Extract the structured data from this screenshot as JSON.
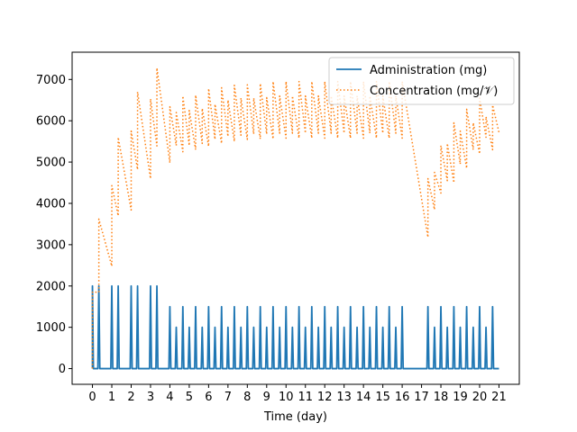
{
  "chart_data": {
    "type": "line",
    "title": "",
    "xlabel": "Time (day)",
    "ylabel": "",
    "xlim": [
      -1.05,
      22.05
    ],
    "ylim": [
      -380,
      7660
    ],
    "xticks": [
      "0",
      "1",
      "2",
      "3",
      "4",
      "5",
      "6",
      "7",
      "8",
      "9",
      "10",
      "11",
      "12",
      "13",
      "14",
      "15",
      "16",
      "17",
      "18",
      "19",
      "20",
      "21"
    ],
    "yticks": [
      "0",
      "1000",
      "2000",
      "3000",
      "4000",
      "5000",
      "6000",
      "7000"
    ],
    "grid": false,
    "legend_position": "top-right",
    "series": [
      {
        "name": "Administration (mg)",
        "color": "#1f77b4",
        "style": "solid",
        "dose_days": [
          0,
          0.33,
          1,
          1.33,
          2,
          2.33,
          3,
          3.33,
          4,
          4.33,
          4.67,
          5,
          5.33,
          5.67,
          6,
          6.33,
          6.67,
          7,
          7.33,
          7.67,
          8,
          8.33,
          8.67,
          9,
          9.33,
          9.67,
          10,
          10.33,
          10.67,
          11,
          11.33,
          11.67,
          12,
          12.33,
          12.67,
          13,
          13.33,
          13.67,
          14,
          14.33,
          14.67,
          15,
          15.33,
          15.67,
          16,
          17.33,
          17.67,
          18,
          18.33,
          18.67,
          19,
          19.33,
          19.67,
          20,
          20.33,
          20.67
        ],
        "dose_mg": [
          2000,
          2000,
          2000,
          2000,
          2000,
          2000,
          2000,
          2000,
          1500,
          1000,
          1500,
          1000,
          1500,
          1000,
          1500,
          1000,
          1500,
          1000,
          1500,
          1000,
          1500,
          1000,
          1500,
          1000,
          1500,
          1000,
          1500,
          1000,
          1500,
          1000,
          1500,
          1000,
          1500,
          1000,
          1500,
          1000,
          1500,
          1000,
          1500,
          1000,
          1500,
          1000,
          1500,
          1000,
          1500,
          1500,
          1000,
          1500,
          1000,
          1500,
          1000,
          1500,
          1000,
          1500,
          1000,
          1500
        ],
        "x_end": 21
      },
      {
        "name": "Concentration (mg/𝒱)",
        "color": "#ff7f0e",
        "style": "dotted",
        "x": [
          0,
          0.33,
          1,
          1.33,
          2,
          2.33,
          3,
          3.33,
          4,
          4.33,
          4.67,
          5,
          5.33,
          5.67,
          6,
          6.33,
          6.67,
          7,
          7.33,
          7.67,
          8,
          8.33,
          8.67,
          9,
          9.33,
          9.67,
          10,
          10.33,
          10.67,
          11,
          11.33,
          11.67,
          12,
          12.33,
          12.67,
          13,
          13.33,
          13.67,
          14,
          14.33,
          14.67,
          15,
          15.33,
          15.67,
          16,
          17.33,
          17.67,
          18,
          18.33,
          18.67,
          19,
          19.33,
          19.67,
          20,
          20.33,
          20.67
        ],
        "peak": [
          1850,
          3620,
          4430,
          5600,
          5750,
          6700,
          6530,
          7280,
          6340,
          6200,
          6600,
          6250,
          6620,
          6300,
          6780,
          6400,
          6800,
          6500,
          6860,
          6550,
          6870,
          6550,
          6900,
          6560,
          6950,
          6600,
          6950,
          6600,
          6950,
          6600,
          6950,
          6600,
          6950,
          6600,
          6950,
          6600,
          6950,
          6600,
          6950,
          6600,
          6950,
          6600,
          6950,
          6600,
          6950,
          4600,
          4750,
          5400,
          5450,
          5950,
          5750,
          6280,
          5950,
          6550,
          6100,
          6380
        ],
        "trough_before": [
          0,
          1850,
          2480,
          3700,
          3840,
          4820,
          4600,
          5390,
          4980,
          5400,
          5250,
          5400,
          5300,
          5450,
          5380,
          5550,
          5450,
          5620,
          5500,
          5650,
          5550,
          5680,
          5560,
          5680,
          5560,
          5700,
          5580,
          5700,
          5580,
          5700,
          5580,
          5700,
          5580,
          5700,
          5580,
          5700,
          5580,
          5700,
          5580,
          5700,
          5580,
          5700,
          5580,
          5700,
          5580,
          3180,
          3850,
          4250,
          4550,
          4500,
          4950,
          4850,
          5300,
          5200,
          5600,
          5300
        ],
        "x_end": 21,
        "end_value": 5720
      }
    ]
  }
}
